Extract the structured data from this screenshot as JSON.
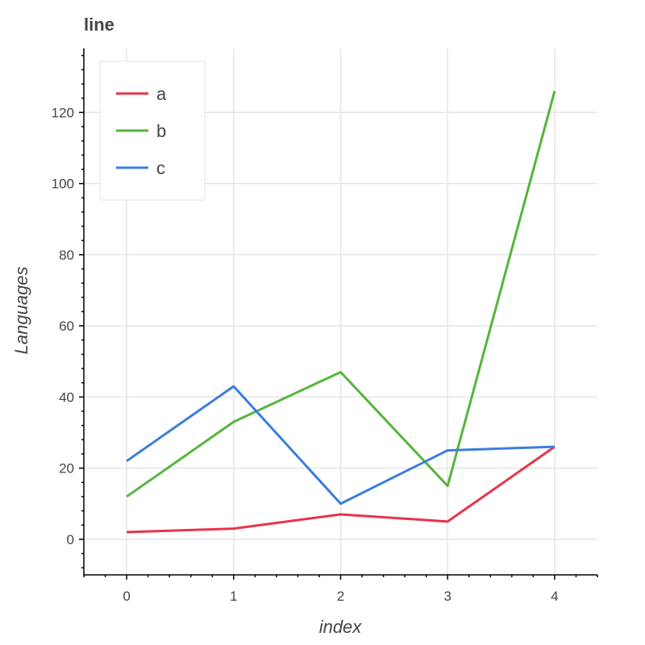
{
  "chart_data": {
    "type": "line",
    "title": "line",
    "xlabel": "index",
    "ylabel": "Languages",
    "x": [
      0,
      1,
      2,
      3,
      4
    ],
    "xlim": [
      -0.4,
      4.4
    ],
    "ylim": [
      -10,
      138
    ],
    "x_ticks": [
      "0",
      "1",
      "2",
      "3",
      "4"
    ],
    "y_ticks": [
      "0",
      "20",
      "40",
      "60",
      "80",
      "100",
      "120"
    ],
    "grid": true,
    "legend_position": "top-left",
    "series": [
      {
        "name": "a",
        "color": "#e8334a",
        "values": [
          2,
          3,
          7,
          5,
          26
        ]
      },
      {
        "name": "b",
        "color": "#56b53c",
        "values": [
          12,
          33,
          47,
          15,
          126
        ]
      },
      {
        "name": "c",
        "color": "#3b7ddd",
        "values": [
          22,
          43,
          10,
          25,
          26
        ]
      }
    ]
  }
}
